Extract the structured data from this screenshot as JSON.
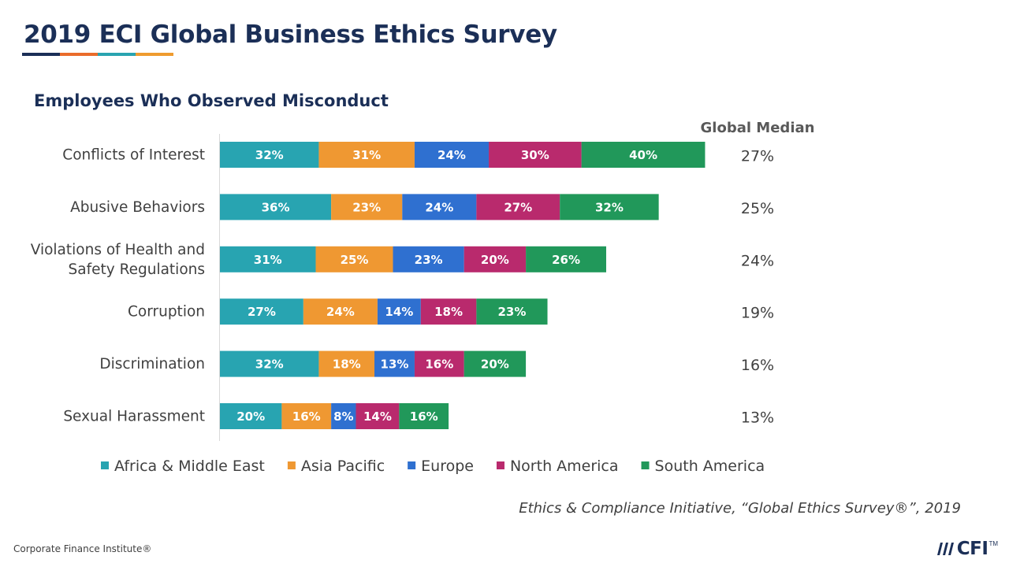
{
  "header": {
    "title": "2019 ECI Global Business Ethics Survey"
  },
  "colors": {
    "title_bar": [
      "#1b2f57",
      "#ea6c2b",
      "#29a4b0",
      "#ef9b2f"
    ]
  },
  "chart_data": {
    "type": "bar",
    "orientation": "horizontal",
    "stacked": true,
    "title": "Employees Who Observed Misconduct",
    "categories": [
      "Conflicts of Interest",
      "Abusive Behaviors",
      "Violations of Health and Safety Regulations",
      "Corruption",
      "Discrimination",
      "Sexual Harassment"
    ],
    "category_lines": [
      [
        "Conflicts of Interest"
      ],
      [
        "Abusive Behaviors"
      ],
      [
        "Violations of Health and",
        "Safety Regulations"
      ],
      [
        "Corruption"
      ],
      [
        "Discrimination"
      ],
      [
        "Sexual Harassment"
      ]
    ],
    "series": [
      {
        "name": "Africa & Middle East",
        "color": "#28a4b1",
        "values": [
          32,
          36,
          31,
          27,
          32,
          20
        ]
      },
      {
        "name": "Asia Pacific",
        "color": "#ef9832",
        "values": [
          31,
          23,
          25,
          24,
          18,
          16
        ]
      },
      {
        "name": "Europe",
        "color": "#2f70d0",
        "values": [
          24,
          24,
          23,
          14,
          13,
          8
        ]
      },
      {
        "name": "North America",
        "color": "#b92a6d",
        "values": [
          30,
          27,
          20,
          18,
          16,
          14
        ]
      },
      {
        "name": "South America",
        "color": "#21985a",
        "values": [
          40,
          32,
          26,
          23,
          20,
          16
        ]
      }
    ],
    "value_suffix": "%",
    "median_header": "Global Median",
    "global_median": [
      "27%",
      "25%",
      "24%",
      "19%",
      "16%",
      "13%"
    ],
    "legend_position": "bottom",
    "grid": false
  },
  "source": "Ethics & Compliance Initiative, “Global Ethics Survey®”, 2019",
  "footer": {
    "left": "Corporate Finance Institute®",
    "logo_text": "CFI",
    "logo_tm": "TM"
  }
}
